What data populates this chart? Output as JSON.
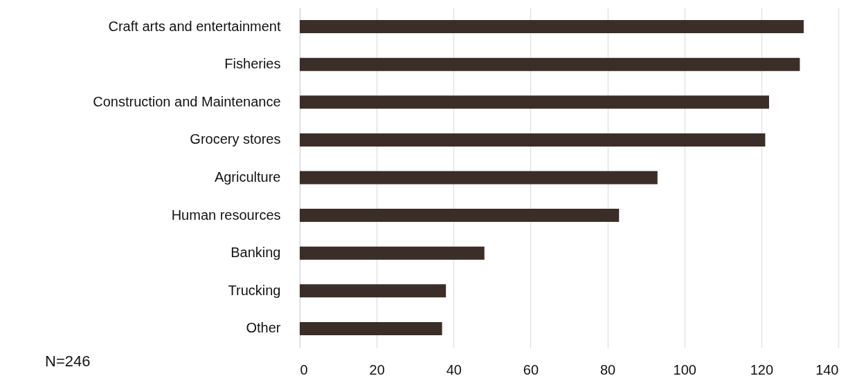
{
  "chart_data": {
    "type": "bar",
    "orientation": "horizontal",
    "categories": [
      "Craft arts and entertainment",
      "Fisheries",
      "Construction and Maintenance",
      "Grocery stores",
      "Agriculture",
      "Human resources",
      "Banking",
      "Trucking",
      "Other"
    ],
    "values": [
      131,
      130,
      122,
      121,
      93,
      83,
      48,
      38,
      37
    ],
    "color": "#3b2d27",
    "xlim": [
      0,
      140
    ],
    "xticks": [
      0,
      20,
      40,
      60,
      80,
      100,
      120,
      140
    ],
    "grid": "x",
    "annotations": [
      "N=246"
    ]
  }
}
